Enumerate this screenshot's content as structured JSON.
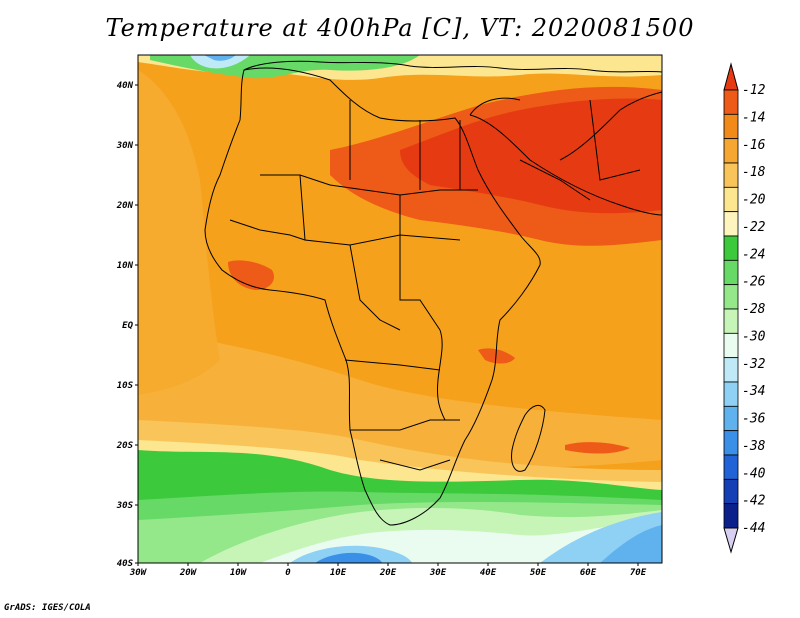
{
  "title": "Temperature at 400hPa [C], VT: 2020081500",
  "footer": "GrADS: IGES/COLA",
  "map": {
    "lon_range": [
      -30,
      75
    ],
    "lat_range": [
      -40,
      45
    ],
    "lon_ticks": [
      "30W",
      "20W",
      "10W",
      "0",
      "10E",
      "20E",
      "30E",
      "40E",
      "50E",
      "60E",
      "70E"
    ],
    "lat_ticks": [
      "40N",
      "30N",
      "20N",
      "10N",
      "EQ",
      "10S",
      "20S",
      "30S",
      "40S"
    ]
  },
  "colorbar": {
    "labels": [
      "-12",
      "-14",
      "-16",
      "-18",
      "-20",
      "-22",
      "-24",
      "-26",
      "-28",
      "-30",
      "-32",
      "-34",
      "-36",
      "-38",
      "-40",
      "-42",
      "-44"
    ],
    "colors": [
      "#e63b12",
      "#ee5a17",
      "#f28a1a",
      "#f5a732",
      "#f9c45a",
      "#fce690",
      "#fdf5bd",
      "#3cc93c",
      "#66d966",
      "#94e88a",
      "#c7f5b8",
      "#eafcf0",
      "#bfe9f7",
      "#8fd0f5",
      "#5fb2ee",
      "#3a8fe6",
      "#1f63d6",
      "#143fb5",
      "#0c208b",
      "#d8cff2"
    ]
  }
}
